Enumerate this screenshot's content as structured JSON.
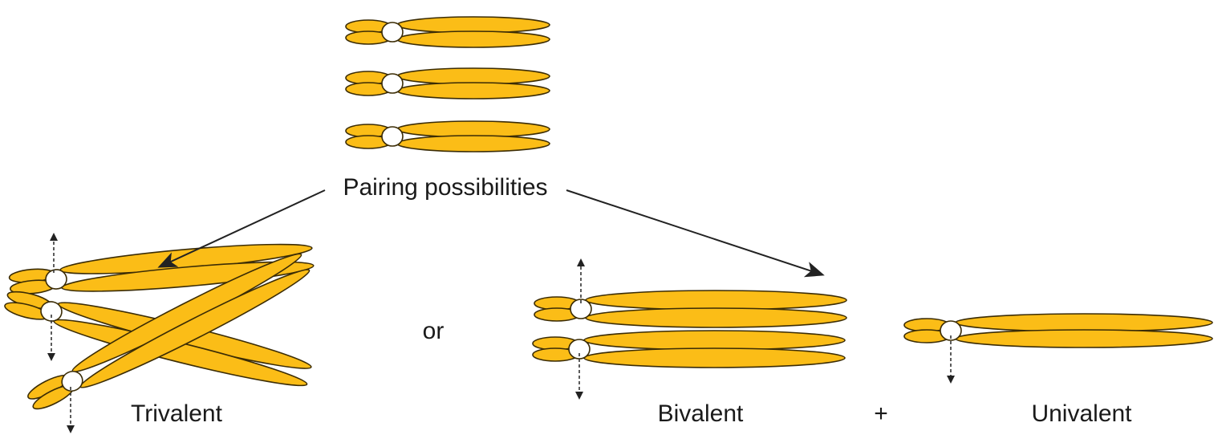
{
  "labels": {
    "top": "Pairing possibilities",
    "trivalent": "Trivalent",
    "or": "or",
    "bivalent": "Bivalent",
    "plus": "+",
    "univalent": "Univalent"
  }
}
